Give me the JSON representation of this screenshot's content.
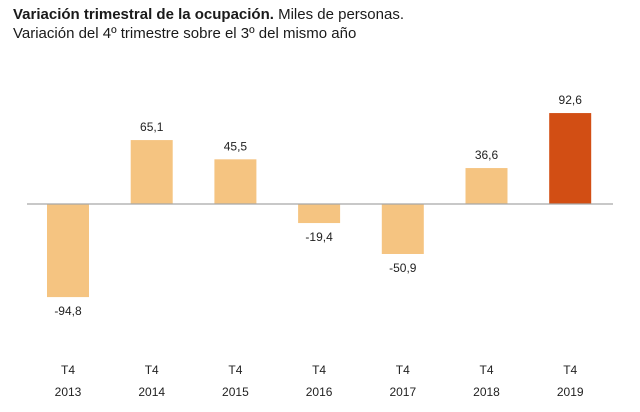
{
  "header": {
    "title_bold": "Variación trimestral de la ocupación.",
    "title_rest": " Miles de personas.",
    "subtitle": "Variación del 4º trimestre sobre el 3º del mismo año"
  },
  "chart_data": {
    "type": "bar",
    "title": "Variación trimestral de la ocupación. Miles de personas.",
    "subtitle": "Variación del 4º trimestre sobre el 3º del mismo año",
    "categories": [
      {
        "quarter": "T4",
        "year": "2013"
      },
      {
        "quarter": "T4",
        "year": "2014"
      },
      {
        "quarter": "T4",
        "year": "2015"
      },
      {
        "quarter": "T4",
        "year": "2016"
      },
      {
        "quarter": "T4",
        "year": "2017"
      },
      {
        "quarter": "T4",
        "year": "2018"
      },
      {
        "quarter": "T4",
        "year": "2019"
      }
    ],
    "values": [
      -94.8,
      65.1,
      45.5,
      -19.4,
      -50.9,
      36.6,
      92.6
    ],
    "value_labels": [
      "-94,8",
      "65,1",
      "45,5",
      "-19,4",
      "-50,9",
      "36,6",
      "92,6"
    ],
    "colors": {
      "default": "#f5c481",
      "highlight": "#d24e14",
      "axis": "#a6a6a6"
    },
    "highlight_index": 6,
    "xlabel": "",
    "ylabel": "",
    "ylim": [
      -100,
      100
    ],
    "grid": false,
    "legend": "none"
  }
}
